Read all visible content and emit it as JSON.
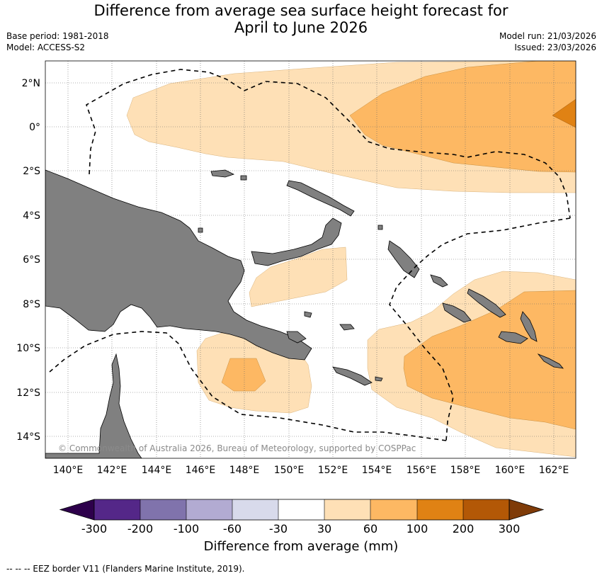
{
  "title": {
    "line1": "Difference from average sea surface height forecast for",
    "line2": "April to June 2026"
  },
  "meta": {
    "base_period": "Base period: 1981-2018",
    "model": "Model: ACCESS-S2",
    "model_run": "Model run: 21/03/2026",
    "issued": "Issued: 23/03/2026"
  },
  "map": {
    "lat_labels": [
      "2°N",
      "0°",
      "2°S",
      "4°S",
      "6°S",
      "8°S",
      "10°S",
      "12°S",
      "14°S"
    ],
    "lon_labels": [
      "140°E",
      "142°E",
      "144°E",
      "146°E",
      "148°E",
      "150°E",
      "152°E",
      "154°E",
      "156°E",
      "158°E",
      "160°E",
      "162°E"
    ],
    "copyright": "© Commonwealth of Australia 2026, Bureau of Meteorology, supported by COSPPac"
  },
  "colorbar": {
    "tick_labels": [
      "-300",
      "-200",
      "-100",
      "-60",
      "-30",
      "30",
      "60",
      "100",
      "200",
      "300"
    ],
    "label": "Difference from average (mm)",
    "colors": {
      "below_-300": "#2d004b",
      "-300_-200": "#542788",
      "-200_-100": "#8073ac",
      "-100_-60": "#b2abd2",
      "-60_-30": "#d8daeb",
      "-30_30": "#ffffff",
      "30_60": "#fee0b6",
      "60_100": "#fdb863",
      "100_200": "#e08214",
      "200_300": "#b35806",
      "above_300": "#7f3b08"
    },
    "land_color": "#808080"
  },
  "footer": {
    "legend_text": "--  --  -- EEZ border V11 (Flanders Marine Institute, 2019)."
  }
}
